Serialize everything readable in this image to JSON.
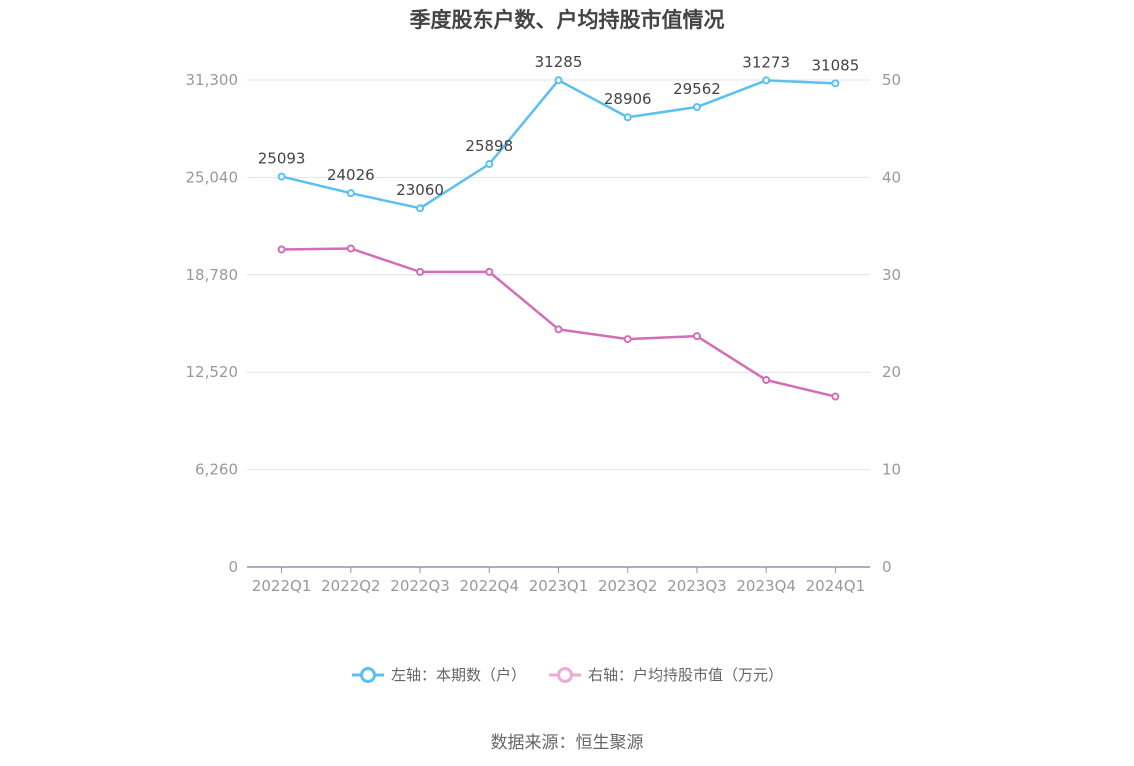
{
  "title": "季度股东户数、户均持股市值情况",
  "source": "数据来源：恒生聚源",
  "legend": {
    "left_label": "左轴：本期数（户）",
    "right_label": "右轴：户均持股市值（万元）"
  },
  "colors": {
    "left": "#5bc0f0",
    "right": "#d26db6",
    "right_legend": "#efa9d6",
    "grid": "#e0e4ee",
    "axis": "#8f96ab",
    "tick_text": "#999999",
    "label_text": "#444444"
  },
  "chart_data": {
    "type": "line",
    "categories": [
      "2022Q1",
      "2022Q2",
      "2022Q3",
      "2022Q4",
      "2023Q1",
      "2023Q2",
      "2023Q3",
      "2023Q4",
      "2024Q1"
    ],
    "left_axis": {
      "ticks": [
        "0",
        "6,260",
        "12,520",
        "18,780",
        "25,040",
        "31,300"
      ],
      "ylim": [
        0,
        31300
      ]
    },
    "right_axis": {
      "ticks": [
        "0",
        "10",
        "20",
        "30",
        "40",
        "50"
      ],
      "ylim": [
        0,
        50
      ]
    },
    "series": [
      {
        "name": "左轴：本期数（户）",
        "axis": "left",
        "values": [
          25093,
          24026,
          23060,
          25898,
          31285,
          28906,
          29562,
          31273,
          31085
        ],
        "labels": [
          "25093",
          "24026",
          "23060",
          "25898",
          "31285",
          "28906",
          "29562",
          "31273",
          "31085"
        ]
      },
      {
        "name": "右轴：户均持股市值（万元）",
        "axis": "right",
        "values": [
          32.6,
          32.7,
          30.3,
          30.3,
          24.4,
          23.4,
          23.7,
          19.2,
          17.5
        ]
      }
    ],
    "grid": true,
    "legend_position": "bottom"
  }
}
